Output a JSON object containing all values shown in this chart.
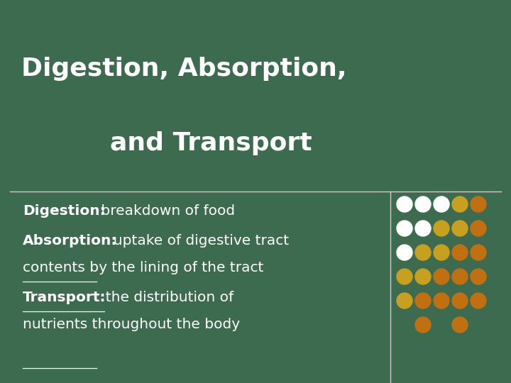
{
  "background_color": "#3d6b4f",
  "title_line1": "Digestion, Absorption,",
  "title_line2": "and Transport",
  "title_color": "#ffffff",
  "title_fontsize": 26,
  "divider_color": "#cccccc",
  "vertical_line_color": "#cccccc",
  "body_color": "#ffffff",
  "body_fontsize": 14.5,
  "dot_grid": {
    "rows": 7,
    "cols": 5,
    "colors_by_row": [
      [
        "#ffffff",
        "#ffffff",
        "#ffffff",
        "#c8a020",
        "#c07010"
      ],
      [
        "#ffffff",
        "#ffffff",
        "#c8a020",
        "#c8a020",
        "#c07010"
      ],
      [
        "#ffffff",
        "#c8a020",
        "#c8a020",
        "#c07010",
        "#c07010"
      ],
      [
        "#c8a020",
        "#c8a020",
        "#c07010",
        "#c07010",
        "#c07010"
      ],
      [
        "#c8a020",
        "#c07010",
        "#c07010",
        "#c07010",
        "#c07010"
      ],
      [
        "#c07010",
        "#c07010",
        "#c07010",
        "#c07010",
        "#c07010"
      ],
      [
        "#c07010",
        "#c07010",
        "#c07010",
        "#c07010",
        "#c07010"
      ]
    ],
    "visible_mask": [
      [
        1,
        1,
        1,
        1,
        1
      ],
      [
        1,
        1,
        1,
        1,
        1
      ],
      [
        1,
        1,
        1,
        1,
        1
      ],
      [
        1,
        1,
        1,
        1,
        1
      ],
      [
        1,
        1,
        1,
        1,
        1
      ],
      [
        0,
        1,
        0,
        1,
        0
      ],
      [
        0,
        0,
        0,
        0,
        0
      ]
    ]
  }
}
